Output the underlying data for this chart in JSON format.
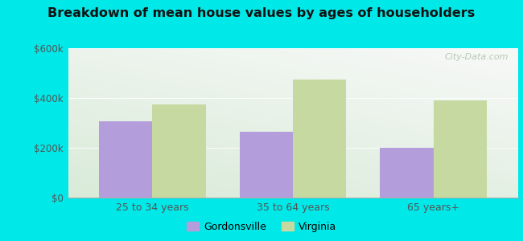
{
  "title": "Breakdown of mean house values by ages of householders",
  "categories": [
    "25 to 34 years",
    "35 to 64 years",
    "65 years+"
  ],
  "gordonsville_values": [
    305000,
    265000,
    200000
  ],
  "virginia_values": [
    375000,
    475000,
    390000
  ],
  "gordonsville_color": "#b39ddb",
  "virginia_color": "#c5d9a0",
  "ylim": [
    0,
    600000
  ],
  "yticks": [
    0,
    200000,
    400000,
    600000
  ],
  "ytick_labels": [
    "$0",
    "$200k",
    "$400k",
    "$600k"
  ],
  "background_color": "#00e8e8",
  "legend_gordonsville": "Gordonsville",
  "legend_virginia": "Virginia",
  "bar_width": 0.38,
  "watermark": "City-Data.com"
}
